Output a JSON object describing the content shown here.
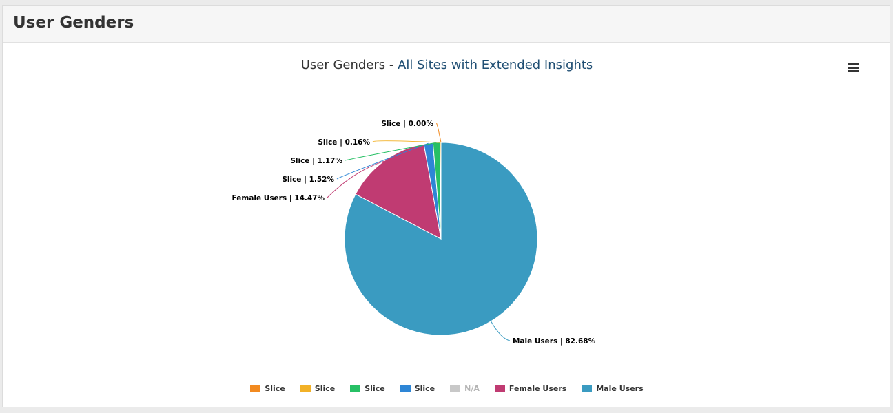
{
  "panel": {
    "title": "User Genders"
  },
  "chart_title": {
    "main": "User Genders - ",
    "highlight": "All Sites with Extended Insights"
  },
  "menu_icon": "hamburger-menu-icon",
  "chart_data": {
    "type": "pie",
    "title": "User Genders - All Sites with Extended Insights",
    "slices": [
      {
        "name": "Male Users",
        "value": 82.68,
        "label": "Male Users | 82.68%",
        "color": "#3a9bc1"
      },
      {
        "name": "Female Users",
        "value": 14.47,
        "label": "Female Users | 14.47%",
        "color": "#c03b72"
      },
      {
        "name": "Slice",
        "value": 1.52,
        "label": "Slice | 1.52%",
        "color": "#2e86d6"
      },
      {
        "name": "Slice",
        "value": 1.17,
        "label": "Slice | 1.17%",
        "color": "#27c065"
      },
      {
        "name": "Slice",
        "value": 0.16,
        "label": "Slice | 0.16%",
        "color": "#f2b127"
      },
      {
        "name": "Slice",
        "value": 0.0,
        "label": "Slice | 0.00%",
        "color": "#f28a20"
      }
    ],
    "legend": [
      {
        "label": "Slice",
        "color": "#f28a20",
        "active": true
      },
      {
        "label": "Slice",
        "color": "#f2b127",
        "active": true
      },
      {
        "label": "Slice",
        "color": "#27c065",
        "active": true
      },
      {
        "label": "Slice",
        "color": "#2e86d6",
        "active": true
      },
      {
        "label": "N/A",
        "color": "#c8c8c8",
        "active": false
      },
      {
        "label": "Female Users",
        "color": "#c03b72",
        "active": true
      },
      {
        "label": "Male Users",
        "color": "#3a9bc1",
        "active": true
      }
    ],
    "legend_position": "bottom"
  }
}
